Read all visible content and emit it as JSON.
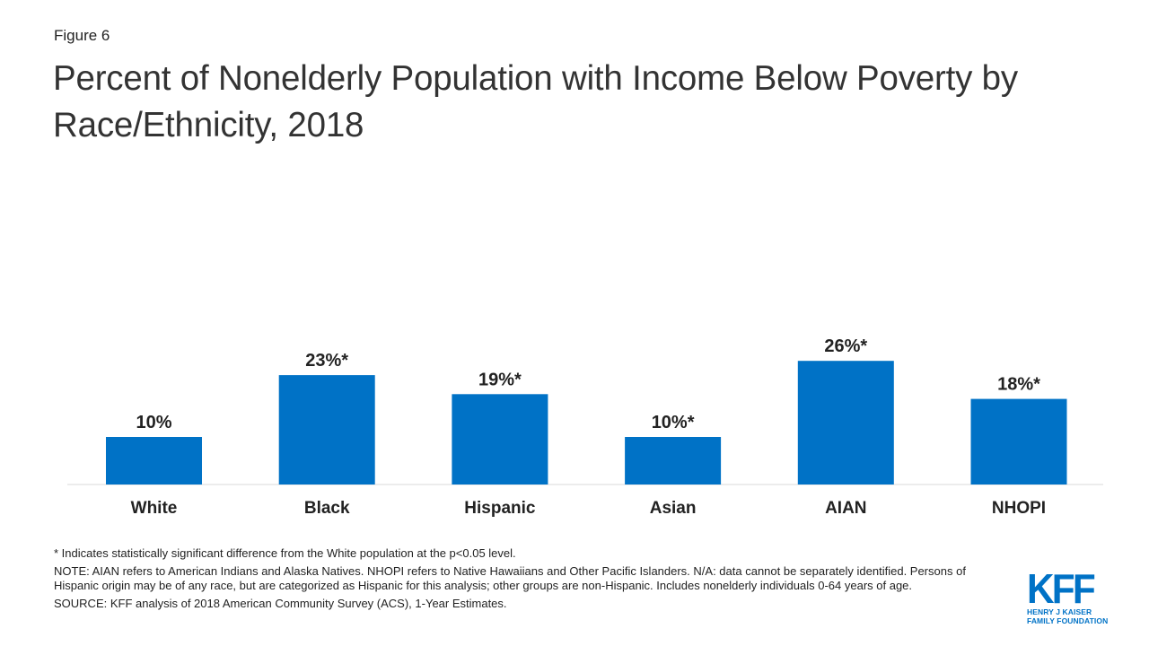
{
  "figure_label": "Figure 6",
  "title": "Percent of Nonelderly Population with Income Below Poverty by Race/Ethnicity, 2018",
  "chart_data": {
    "type": "bar",
    "categories": [
      "White",
      "Black",
      "Hispanic",
      "Asian",
      "AIAN",
      "NHOPI"
    ],
    "values": [
      10,
      23,
      19,
      10,
      26,
      18
    ],
    "data_labels": [
      "10%",
      "23%*",
      "19%*",
      "10%*",
      "26%*",
      "18%*"
    ],
    "title": "Percent of Nonelderly Population with Income Below Poverty by Race/Ethnicity, 2018",
    "xlabel": "",
    "ylabel": "",
    "ylim": [
      0,
      30
    ],
    "grid": false,
    "bar_color": "#0072C6"
  },
  "notes": {
    "significance": "* Indicates statistically significant difference from the White population at the p<0.05 level.",
    "note": "NOTE: AIAN refers to American Indians and Alaska Natives. NHOPI refers to Native Hawaiians and Other Pacific Islanders. N/A: data cannot be separately identified. Persons of Hispanic origin may be of any race, but are categorized as Hispanic for this analysis; other groups are non-Hispanic. Includes nonelderly individuals 0-64 years of age.",
    "source": "SOURCE: KFF analysis of 2018 American Community Survey (ACS), 1-Year Estimates."
  },
  "logo": {
    "main": "KFF",
    "line1": "HENRY J KAISER",
    "line2": "FAMILY FOUNDATION",
    "color": "#0072C6"
  }
}
